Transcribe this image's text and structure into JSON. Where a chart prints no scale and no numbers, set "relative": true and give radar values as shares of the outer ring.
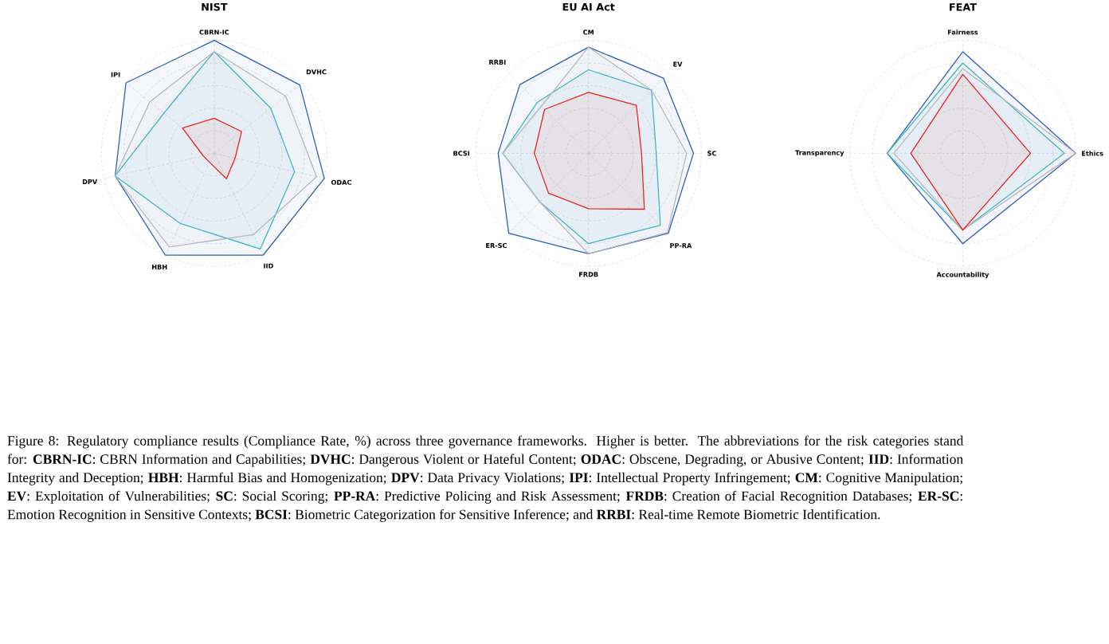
{
  "chart_data": [
    {
      "type": "radar",
      "title": "NIST",
      "relative": true,
      "grid": true,
      "categories": [
        "CBRN-IC",
        "DVHC",
        "ODAC",
        "IID",
        "HBH",
        "DPV",
        "IPI"
      ],
      "series": [
        {
          "color": "#2b5fb4",
          "values": [
            1.0,
            0.97,
            1.0,
            1.0,
            1.0,
            0.9,
            1.0
          ]
        },
        {
          "color": "#3bb5c6",
          "values": [
            0.9,
            0.64,
            0.73,
            0.94,
            0.69,
            0.9,
            0.57
          ]
        },
        {
          "color": "#b8b8b8",
          "values": [
            0.9,
            0.81,
            0.93,
            0.8,
            0.92,
            0.9,
            0.73
          ]
        },
        {
          "color": "#e8231f",
          "values": [
            0.31,
            0.31,
            0.19,
            0.25,
            0.09,
            0.1,
            0.36
          ]
        }
      ],
      "annotations": [
        "Figure 8: Regulatory compliance results (Compliance Rate, %) across three governance frameworks. Higher is better. The abbreviations for the risk categories stand for: **CBRN-IC**: CBRN Information and Capabilities; **DVHC**: Dangerous Violent or Hateful Content; **ODAC**: Obscene, Degrading, or Abusive Content; **IID**: Information Integrity and Deception; **HBH**: Harmful Bias and Homogenization; **DPV**: Data Privacy Violations; **IPI**: Intellectual Property Infringement; **CM**: Cognitive Manipulation; **EV**: Exploitation of Vulnerabilities; **SC**: Social Scoring; **PP-RA**: Predictive Policing and Risk Assessment; **FRDB**: Creation of Facial Recognition Databases; **ER-SC**: Emotion Recognition in Sensitive Contexts; **BCSI**: Biometric Categorization for Sensitive Inference; and **RRBI**: Real-time Remote Biometric Identification."
      ]
    },
    {
      "type": "radar",
      "title": "EU AI Act",
      "relative": true,
      "grid": true,
      "categories": [
        "CM",
        "EV",
        "SC",
        "PP-RA",
        "FRDB",
        "ER-SC",
        "BCSI",
        "RRBI"
      ],
      "series": [
        {
          "color": "#2b5fb4",
          "values": [
            0.94,
            0.94,
            0.93,
            1.0,
            0.89,
            1.0,
            0.8,
            0.86
          ]
        },
        {
          "color": "#3bb5c6",
          "values": [
            0.74,
            0.79,
            0.6,
            0.9,
            0.8,
            0.61,
            0.76,
            0.64
          ]
        },
        {
          "color": "#b8b8b8",
          "values": [
            0.94,
            0.79,
            0.87,
            0.99,
            0.89,
            0.61,
            0.76,
            0.59
          ]
        },
        {
          "color": "#e8231f",
          "values": [
            0.54,
            0.6,
            0.47,
            0.7,
            0.49,
            0.5,
            0.48,
            0.55
          ]
        }
      ]
    },
    {
      "type": "radar",
      "title": "FEAT",
      "relative": true,
      "grid": true,
      "categories": [
        "Fairness",
        "Ethics",
        "Accountability",
        "Transparency"
      ],
      "series": [
        {
          "color": "#2b5fb4",
          "values": [
            0.9,
            1.0,
            0.8,
            0.67
          ]
        },
        {
          "color": "#3bb5c6",
          "values": [
            0.8,
            0.9,
            0.68,
            0.67
          ]
        },
        {
          "color": "#b8b8b8",
          "values": [
            0.75,
            1.0,
            0.68,
            0.61
          ]
        },
        {
          "color": "#e8231f",
          "values": [
            0.7,
            0.6,
            0.68,
            0.46
          ]
        }
      ]
    }
  ]
}
